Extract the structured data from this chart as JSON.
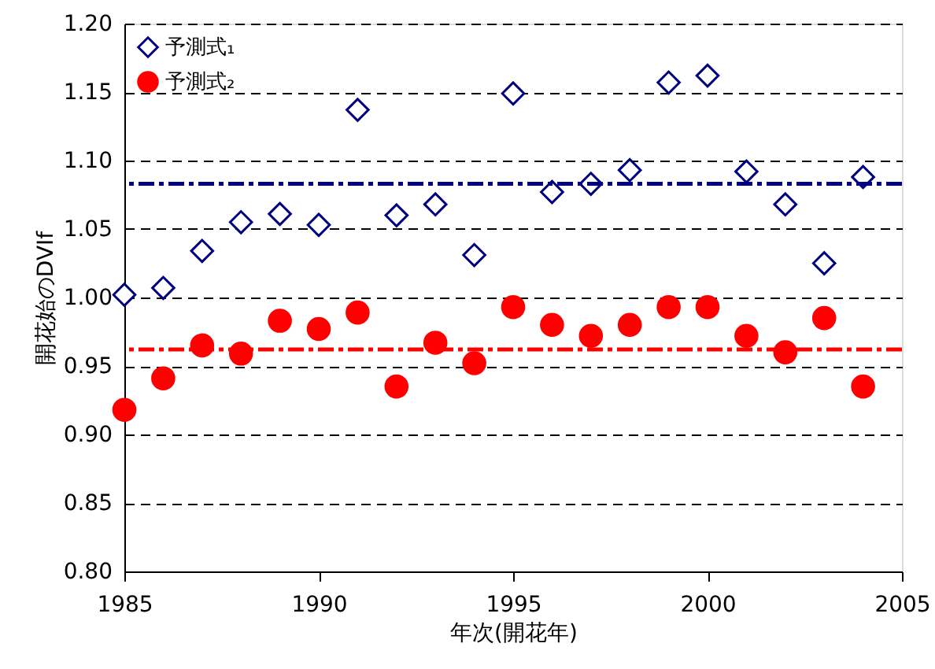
{
  "chart_data": {
    "type": "scatter",
    "xlabel": "年次(開花年)",
    "ylabel": "開花始のDVIf",
    "x": [
      1985,
      1986,
      1987,
      1988,
      1989,
      1990,
      1991,
      1992,
      1993,
      1994,
      1995,
      1996,
      1997,
      1998,
      1999,
      2000,
      2001,
      2002,
      2003,
      2004
    ],
    "series": [
      {
        "name": "予測式₁",
        "color": "#000080",
        "marker": "diamond",
        "values": [
          1.002,
          1.007,
          1.034,
          1.055,
          1.061,
          1.053,
          1.137,
          1.06,
          1.068,
          1.031,
          1.149,
          1.077,
          1.083,
          1.093,
          1.157,
          1.162,
          1.092,
          1.068,
          1.025,
          1.088
        ]
      },
      {
        "name": "予測式₂",
        "color": "#ff0000",
        "marker": "circle",
        "values": [
          0.918,
          0.941,
          0.965,
          0.959,
          0.983,
          0.977,
          0.989,
          0.935,
          0.967,
          0.952,
          0.993,
          0.98,
          0.972,
          0.98,
          0.993,
          0.993,
          0.972,
          0.96,
          0.985,
          0.935
        ]
      }
    ],
    "ref_lines": [
      {
        "axis": "y",
        "value": 1.083,
        "color": "#000080",
        "line_style": "dashed"
      },
      {
        "axis": "y",
        "value": 0.962,
        "color": "#ff0000",
        "line_style": "dashed"
      }
    ],
    "xlim": [
      1985,
      2005
    ],
    "xticks": [
      1985,
      1990,
      1995,
      2000,
      2005
    ],
    "ylim": [
      0.8,
      1.2
    ],
    "yticks": [
      {
        "value": 0.8,
        "label": "0.80"
      },
      {
        "value": 0.85,
        "label": "0.85"
      },
      {
        "value": 0.9,
        "label": "0.90"
      },
      {
        "value": 0.95,
        "label": "0.95"
      },
      {
        "value": 1.0,
        "label": "1.00"
      },
      {
        "value": 1.05,
        "label": "1.05"
      },
      {
        "value": 1.1,
        "label": "1.10"
      },
      {
        "value": 1.15,
        "label": "1.15"
      },
      {
        "value": 1.2,
        "label": "1.20"
      }
    ],
    "grid": "y",
    "legend": "top left"
  }
}
